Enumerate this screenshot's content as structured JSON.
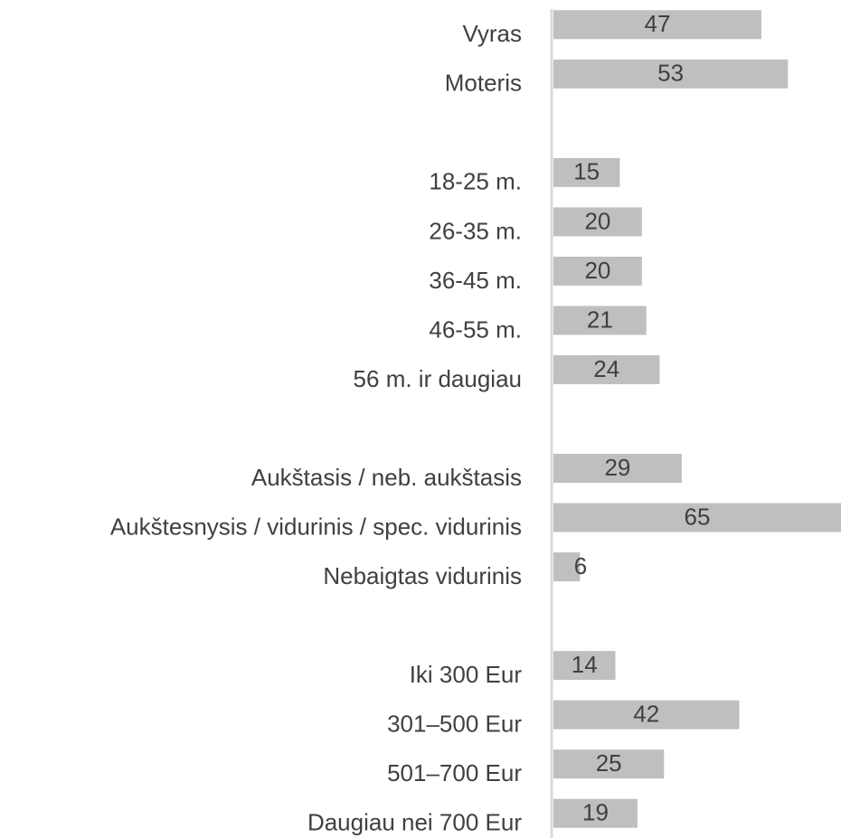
{
  "chart_data": {
    "type": "barh",
    "categories": [
      "Vyras",
      "Moteris",
      null,
      "18-25 m.",
      "26-35 m.",
      "36-45 m.",
      "46-55 m.",
      "56 m. ir daugiau",
      null,
      "Aukštasis / neb. aukštasis",
      "Aukštesnysis / vidurinis / spec. vidurinis",
      "Nebaigtas vidurinis",
      null,
      "Iki 300 Eur",
      "301–500 Eur",
      "501–700 Eur",
      "Daugiau nei 700 Eur"
    ],
    "values": [
      47,
      53,
      null,
      15,
      20,
      20,
      21,
      24,
      null,
      29,
      65,
      6,
      null,
      14,
      42,
      25,
      19
    ],
    "color": "#bfbfbf",
    "xlim": [
      0,
      65
    ]
  }
}
